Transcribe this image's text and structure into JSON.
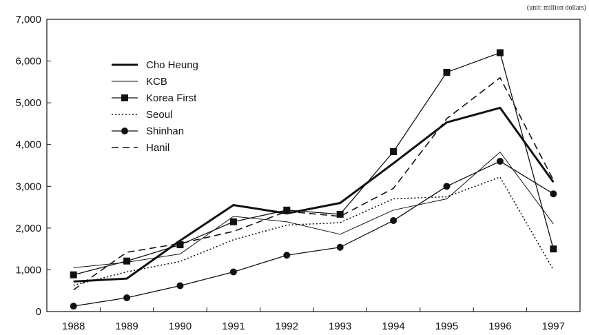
{
  "chart_data": {
    "type": "line",
    "unit_note": "(unit: million dollars)",
    "x": [
      "1988",
      "1989",
      "1990",
      "1991",
      "1992",
      "1993",
      "1994",
      "1995",
      "1996",
      "1997"
    ],
    "ylim": [
      0,
      7000
    ],
    "yticks": [
      0,
      1000,
      2000,
      3000,
      4000,
      5000,
      6000,
      7000
    ],
    "ytick_labels": [
      "0",
      "1,000",
      "2,000",
      "3,000",
      "4,000",
      "5,000",
      "6,000",
      "7,000"
    ],
    "grid": false,
    "legend_position": "top-left",
    "series": [
      {
        "name": "Cho Heung",
        "style": "thick",
        "values": [
          720,
          790,
          1700,
          2550,
          2350,
          2600,
          3550,
          4530,
          4880,
          3100
        ]
      },
      {
        "name": "KCB",
        "style": "thin",
        "values": [
          1050,
          1180,
          1380,
          2280,
          2150,
          1850,
          2430,
          2700,
          3820,
          2100
        ]
      },
      {
        "name": "Korea First",
        "style": "square-marker",
        "values": [
          880,
          1210,
          1600,
          2150,
          2430,
          2330,
          3830,
          5730,
          6200,
          1500
        ]
      },
      {
        "name": "Seoul",
        "style": "dotted",
        "values": [
          630,
          950,
          1200,
          1720,
          2070,
          2130,
          2700,
          2750,
          3220,
          1000
        ]
      },
      {
        "name": "Shinhan",
        "style": "circle-marker",
        "values": [
          130,
          330,
          620,
          950,
          1350,
          1540,
          2180,
          3000,
          3600,
          2820
        ]
      },
      {
        "name": "Hanil",
        "style": "dashed",
        "values": [
          520,
          1420,
          1630,
          1920,
          2400,
          2280,
          2950,
          4620,
          5600,
          3150
        ]
      }
    ]
  }
}
